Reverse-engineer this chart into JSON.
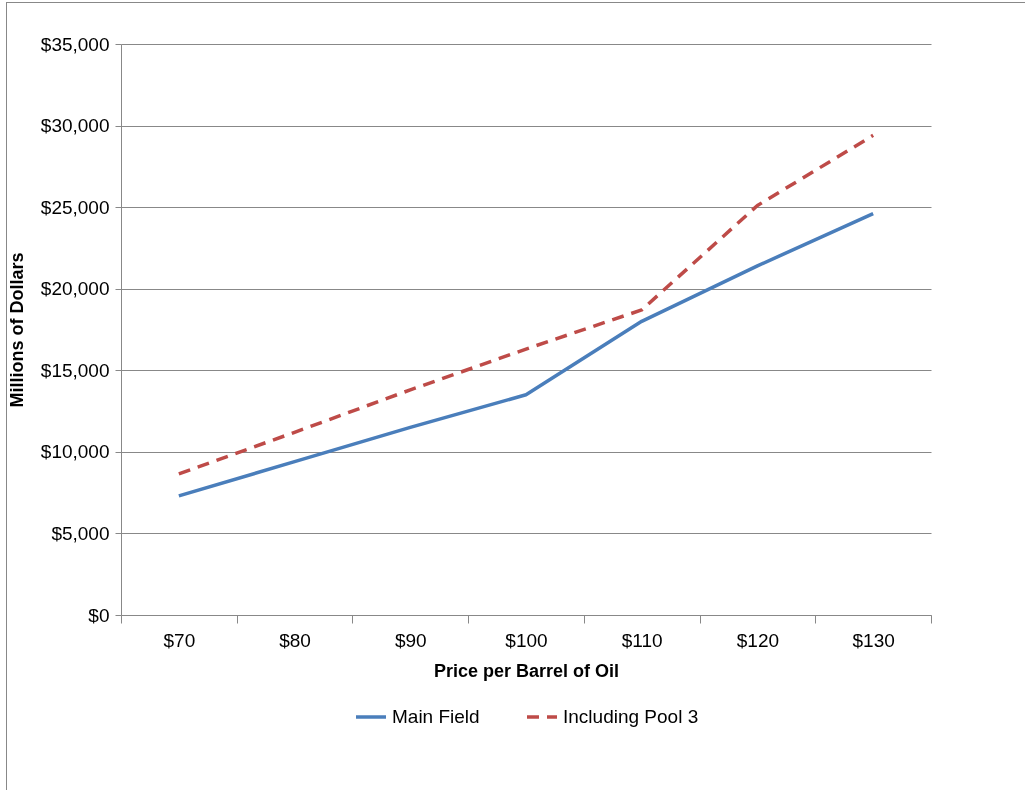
{
  "chart_data": {
    "type": "line",
    "xlabel": "Price per Barrel of Oil",
    "ylabel": "Millions of Dollars",
    "categories": [
      "$70",
      "$80",
      "$90",
      "$100",
      "$110",
      "$120",
      "$130"
    ],
    "series": [
      {
        "name": "Main Field",
        "color": "#4a7ebb",
        "line_style": "solid",
        "values": [
          7300,
          9400,
          11500,
          13500,
          18000,
          21400,
          24600
        ]
      },
      {
        "name": "Including Pool 3",
        "color": "#be4b48",
        "line_style": "dashed",
        "values": [
          8650,
          11200,
          13800,
          16300,
          18700,
          25100,
          29400
        ]
      }
    ],
    "ylim": [
      0,
      35000
    ],
    "yticks": [
      {
        "value": 0,
        "label": "$0"
      },
      {
        "value": 5000,
        "label": "$5,000"
      },
      {
        "value": 10000,
        "label": "$10,000"
      },
      {
        "value": 15000,
        "label": "$15,000"
      },
      {
        "value": 20000,
        "label": "$20,000"
      },
      {
        "value": 25000,
        "label": "$25,000"
      },
      {
        "value": 30000,
        "label": "$30,000"
      },
      {
        "value": 35000,
        "label": "$35,000"
      }
    ],
    "grid": "y",
    "legend": "bottom",
    "marker": "none"
  }
}
